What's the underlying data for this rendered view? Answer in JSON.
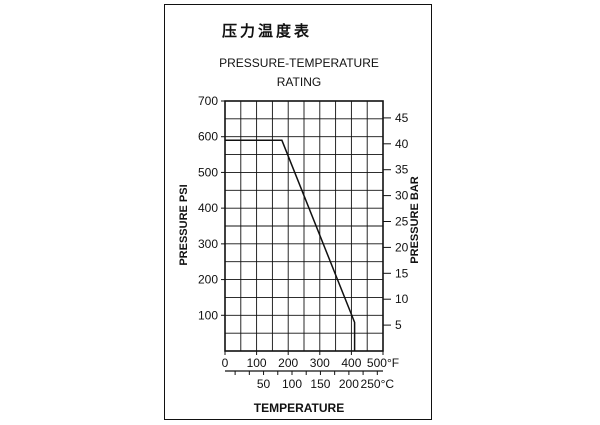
{
  "chart_data": {
    "type": "line",
    "title_cn": "压力温度表",
    "title": "PRESSURE-TEMPERATURE",
    "subtitle": "RATING",
    "xlabel": "TEMPERATURE",
    "ylabel_left": "PRESSURE PSI",
    "ylabel_right": "PRESSURE BAR",
    "x_unit_f": "°F",
    "x_unit_c": "°C",
    "xlim_f": [
      0,
      500
    ],
    "ylim_psi": [
      0,
      700
    ],
    "grid": true,
    "x_ticks_f": [
      {
        "value": 0,
        "label": "0"
      },
      {
        "value": 100,
        "label": "100"
      },
      {
        "value": 200,
        "label": "200"
      },
      {
        "value": 300,
        "label": "300"
      },
      {
        "value": 400,
        "label": "400"
      },
      {
        "value": 500,
        "label": "500°F"
      }
    ],
    "x_ticks_c": [
      {
        "value": 50,
        "label": "50"
      },
      {
        "value": 100,
        "label": "100"
      },
      {
        "value": 150,
        "label": "150"
      },
      {
        "value": 200,
        "label": "200"
      },
      {
        "value": 250,
        "label": "250°C"
      }
    ],
    "y_ticks_psi": [
      {
        "value": 100,
        "label": "100"
      },
      {
        "value": 200,
        "label": "200"
      },
      {
        "value": 300,
        "label": "300"
      },
      {
        "value": 400,
        "label": "400"
      },
      {
        "value": 500,
        "label": "500"
      },
      {
        "value": 600,
        "label": "600"
      },
      {
        "value": 700,
        "label": "700"
      }
    ],
    "y_ticks_bar": [
      {
        "value": 5,
        "label": "5"
      },
      {
        "value": 10,
        "label": "10"
      },
      {
        "value": 15,
        "label": "15"
      },
      {
        "value": 20,
        "label": "20"
      },
      {
        "value": 25,
        "label": "25"
      },
      {
        "value": 30,
        "label": "30"
      },
      {
        "value": 35,
        "label": "35"
      },
      {
        "value": 40,
        "label": "40"
      },
      {
        "value": 45,
        "label": "45"
      }
    ],
    "series": [
      {
        "x_f": [
          0,
          180,
          410,
          410
        ],
        "y_psi": [
          590,
          590,
          80,
          0
        ]
      }
    ]
  }
}
